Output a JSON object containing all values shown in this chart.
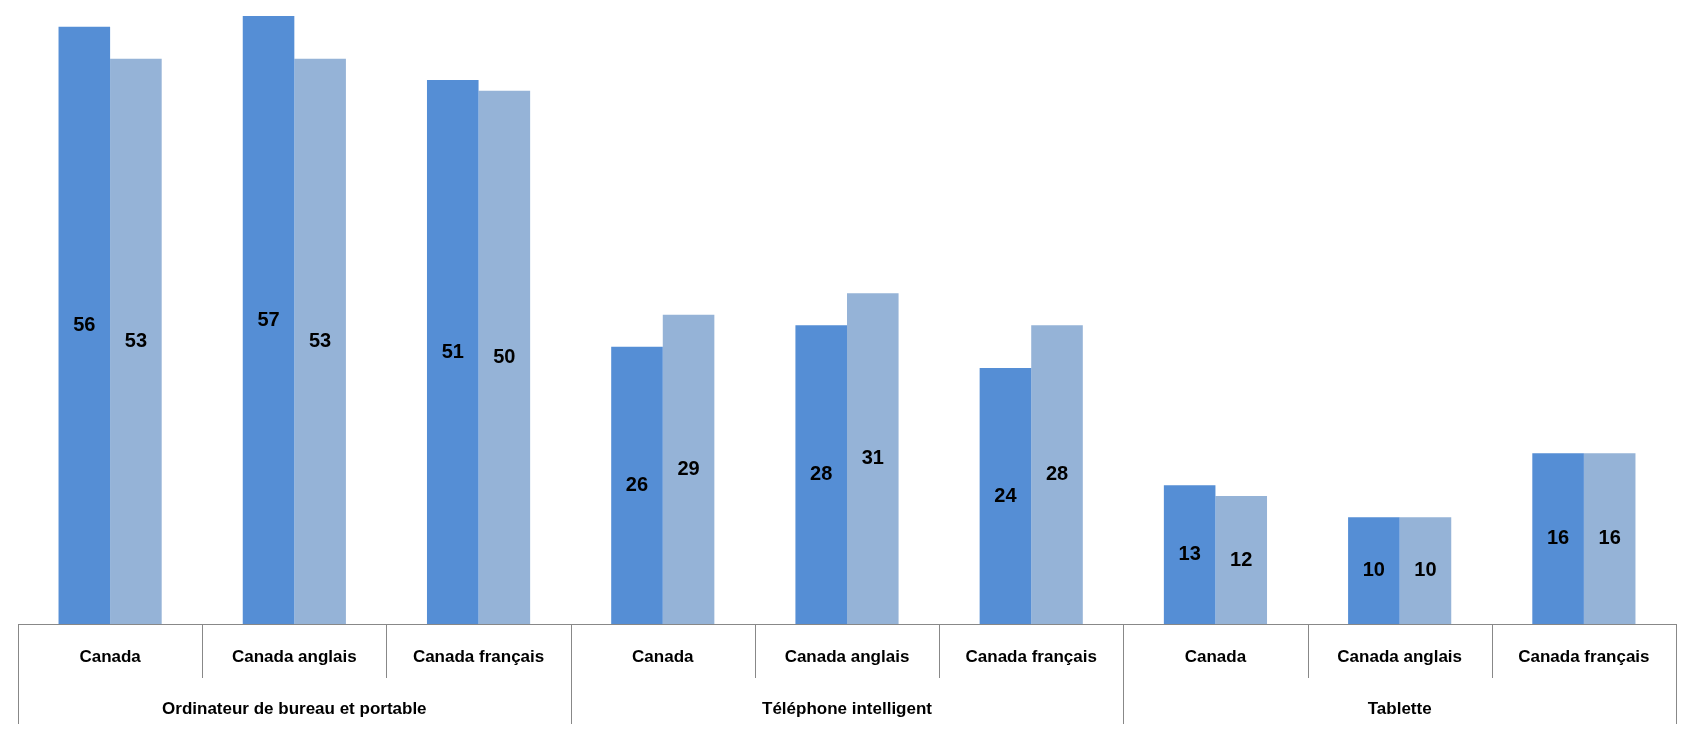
{
  "chart_data": {
    "type": "bar",
    "categories": [
      "Canada",
      "Canada anglais",
      "Canada français",
      "Canada",
      "Canada anglais",
      "Canada français",
      "Canada",
      "Canada anglais",
      "Canada français"
    ],
    "series": [
      {
        "color": "#558ed5",
        "values": [
          56,
          57,
          51,
          26,
          28,
          24,
          13,
          10,
          16
        ]
      },
      {
        "color": "#95b3d7",
        "values": [
          53,
          53,
          50,
          29,
          31,
          28,
          12,
          10,
          16
        ]
      }
    ],
    "annotations": [
      "Ordinateur de bureau et portable",
      "Téléphone intelligent",
      "Tablette"
    ],
    "data_labels": true,
    "grid": false,
    "legend": false
  }
}
